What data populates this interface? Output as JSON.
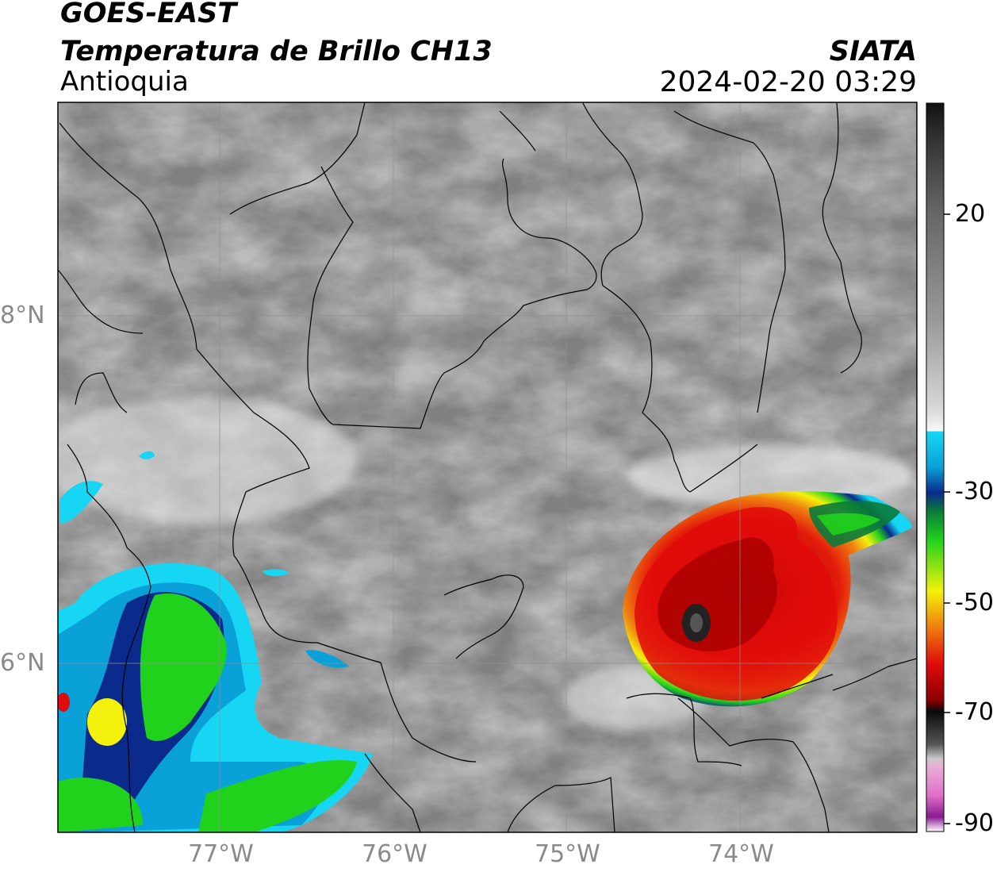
{
  "header": {
    "satellite": "GOES-EAST",
    "product": "Temperatura de Brillo CH13",
    "region": "Antioquia",
    "institution": "SIATA",
    "timestamp": "2024-02-20 03:29"
  },
  "axes": {
    "lat_ticks": [
      {
        "value": 8,
        "label": "8°N"
      },
      {
        "value": 6,
        "label": "6°N"
      }
    ],
    "lon_ticks": [
      {
        "value": -77,
        "label": "77°W"
      },
      {
        "value": -76,
        "label": "76°W"
      },
      {
        "value": -75,
        "label": "75°W"
      },
      {
        "value": -74,
        "label": "74°W"
      }
    ],
    "lon_range": [
      -77.95,
      -73.0
    ],
    "lat_range": [
      5.05,
      9.25
    ]
  },
  "colorbar": {
    "ticks": [
      {
        "value": 20,
        "label": "20"
      },
      {
        "value": -30,
        "label": "-30"
      },
      {
        "value": -50,
        "label": "-50"
      },
      {
        "value": -70,
        "label": "-70"
      },
      {
        "value": -90,
        "label": "-90"
      }
    ],
    "range": [
      -90,
      40
    ],
    "colors": {
      "warm_top": "#111111",
      "warm_gray": "#8a8a8a",
      "white": "#f4f4f4",
      "cyan": "#17d6f3",
      "blue": "#0a2a8c",
      "green": "#21d21d",
      "yellow": "#f4f10c",
      "orange": "#f07d10",
      "red": "#e00b0b",
      "dark_red": "#5a0000",
      "black": "#0a0a0a",
      "pink": "#e070c8",
      "purple": "#8a1a90"
    }
  }
}
